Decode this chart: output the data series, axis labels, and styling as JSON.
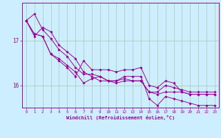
{
  "title": "",
  "xlabel": "Windchill (Refroidissement éolien,°C)",
  "ylabel": "",
  "bg_color": "#cceeff",
  "grid_color": "#aaccbb",
  "line_color": "#990099",
  "xlim": [
    -0.5,
    23.5
  ],
  "ylim": [
    15.5,
    17.85
  ],
  "yticks": [
    16,
    17
  ],
  "xticks": [
    0,
    1,
    2,
    3,
    4,
    5,
    6,
    7,
    8,
    9,
    10,
    11,
    12,
    13,
    14,
    15,
    16,
    17,
    18,
    19,
    20,
    21,
    22,
    23
  ],
  "series": [
    [
      17.45,
      17.6,
      17.25,
      17.05,
      16.8,
      16.65,
      16.4,
      16.25,
      16.25,
      16.2,
      16.1,
      16.1,
      16.15,
      16.1,
      16.1,
      15.85,
      15.85,
      16.0,
      15.95,
      15.9,
      15.85,
      15.85,
      15.85,
      15.85
    ],
    [
      17.45,
      17.15,
      17.1,
      16.7,
      16.6,
      16.45,
      16.3,
      16.05,
      16.15,
      16.2,
      16.1,
      16.1,
      16.2,
      16.2,
      16.2,
      15.7,
      15.55,
      15.75,
      15.7,
      15.65,
      15.6,
      15.55,
      15.55,
      15.55
    ],
    [
      17.45,
      17.15,
      17.1,
      16.7,
      16.55,
      16.4,
      16.2,
      16.55,
      16.35,
      16.35,
      16.35,
      16.3,
      16.35,
      16.35,
      16.4,
      16.0,
      15.95,
      16.1,
      16.05,
      15.85,
      15.8,
      15.8,
      15.8,
      15.8
    ],
    [
      17.45,
      17.1,
      17.3,
      17.2,
      16.9,
      16.75,
      16.6,
      16.3,
      16.2,
      16.1,
      16.1,
      16.05,
      16.1,
      16.1,
      16.1,
      15.85,
      15.8,
      15.85,
      15.85,
      15.85,
      15.8,
      15.8,
      15.8,
      15.8
    ]
  ]
}
